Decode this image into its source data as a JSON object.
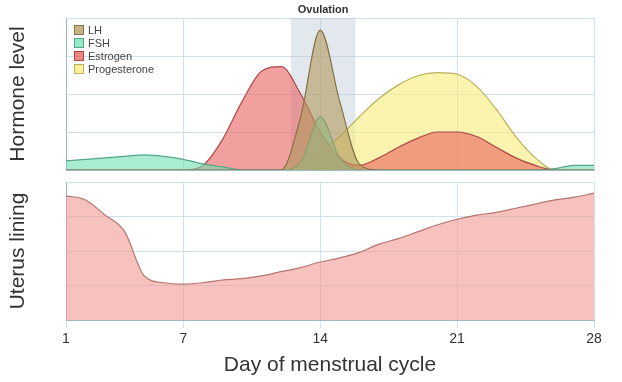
{
  "chart_data": [
    {
      "type": "area",
      "ylabel": "Hormone level",
      "x": [
        1,
        2,
        3,
        4,
        5,
        6,
        7,
        8,
        9,
        10,
        11,
        12,
        13,
        14,
        15,
        16,
        17,
        18,
        19,
        20,
        21,
        22,
        23,
        24,
        25,
        26,
        27,
        28
      ],
      "series": [
        {
          "name": "LH",
          "color": "#b39a5c",
          "values": [
            0,
            0,
            0,
            0,
            0,
            0,
            0,
            0,
            0,
            0,
            0,
            0,
            35,
            92,
            45,
            4,
            0,
            0,
            0,
            0,
            0,
            0,
            0,
            0,
            0,
            0,
            0,
            0
          ]
        },
        {
          "name": "FSH",
          "color": "#6fe0b4",
          "values": [
            6,
            7,
            8,
            9,
            10,
            9,
            7,
            4,
            2,
            0,
            0,
            0,
            5,
            35,
            8,
            0,
            0,
            0,
            0,
            0,
            0,
            0,
            0,
            0,
            0,
            1,
            3,
            3
          ]
        },
        {
          "name": "Estrogen",
          "color": "#e8605f",
          "values": [
            0,
            0,
            0,
            0,
            0,
            0,
            0,
            3,
            20,
            45,
            65,
            68,
            50,
            25,
            8,
            3,
            8,
            15,
            21,
            25,
            25,
            22,
            15,
            8,
            3,
            0,
            0,
            0
          ]
        },
        {
          "name": "Progesterone",
          "color": "#f7ec7a",
          "values": [
            0,
            0,
            0,
            0,
            0,
            0,
            0,
            0,
            0,
            0,
            0,
            0,
            3,
            12,
            22,
            35,
            47,
            56,
            62,
            64,
            63,
            55,
            40,
            22,
            8,
            0,
            0,
            0
          ]
        }
      ],
      "xlim": [
        1,
        28
      ],
      "xticks": [
        1,
        7,
        14,
        21,
        28
      ],
      "ylim": [
        0,
        100
      ],
      "yticks": [
        0,
        25,
        50,
        75,
        100
      ],
      "grid": true,
      "legend": "upper left",
      "tick_labels": false,
      "annotations": [
        {
          "text": "Ovulation",
          "x_range": [
            12.5,
            15.8
          ]
        }
      ]
    },
    {
      "type": "area",
      "ylabel": "Uterus lining",
      "xlabel": "Day of menstrual cycle",
      "x": [
        1,
        2,
        3,
        4,
        5,
        6,
        7,
        8,
        9,
        10,
        11,
        12,
        13,
        14,
        15,
        16,
        17,
        18,
        19,
        20,
        21,
        22,
        23,
        24,
        25,
        26,
        27,
        28
      ],
      "values": [
        90,
        87,
        76,
        64,
        32,
        27,
        26,
        27,
        29,
        30,
        32,
        35,
        38,
        42,
        45,
        49,
        55,
        59,
        64,
        69,
        73,
        76,
        78,
        81,
        84,
        87,
        89,
        92
      ],
      "color": "#f29a92",
      "xlim": [
        1,
        28
      ],
      "xticks": [
        1,
        7,
        14,
        21,
        28
      ],
      "ylim": [
        0,
        100
      ],
      "yticks": [
        0,
        25,
        50,
        75,
        100
      ],
      "grid": true,
      "tick_labels": "x"
    }
  ]
}
